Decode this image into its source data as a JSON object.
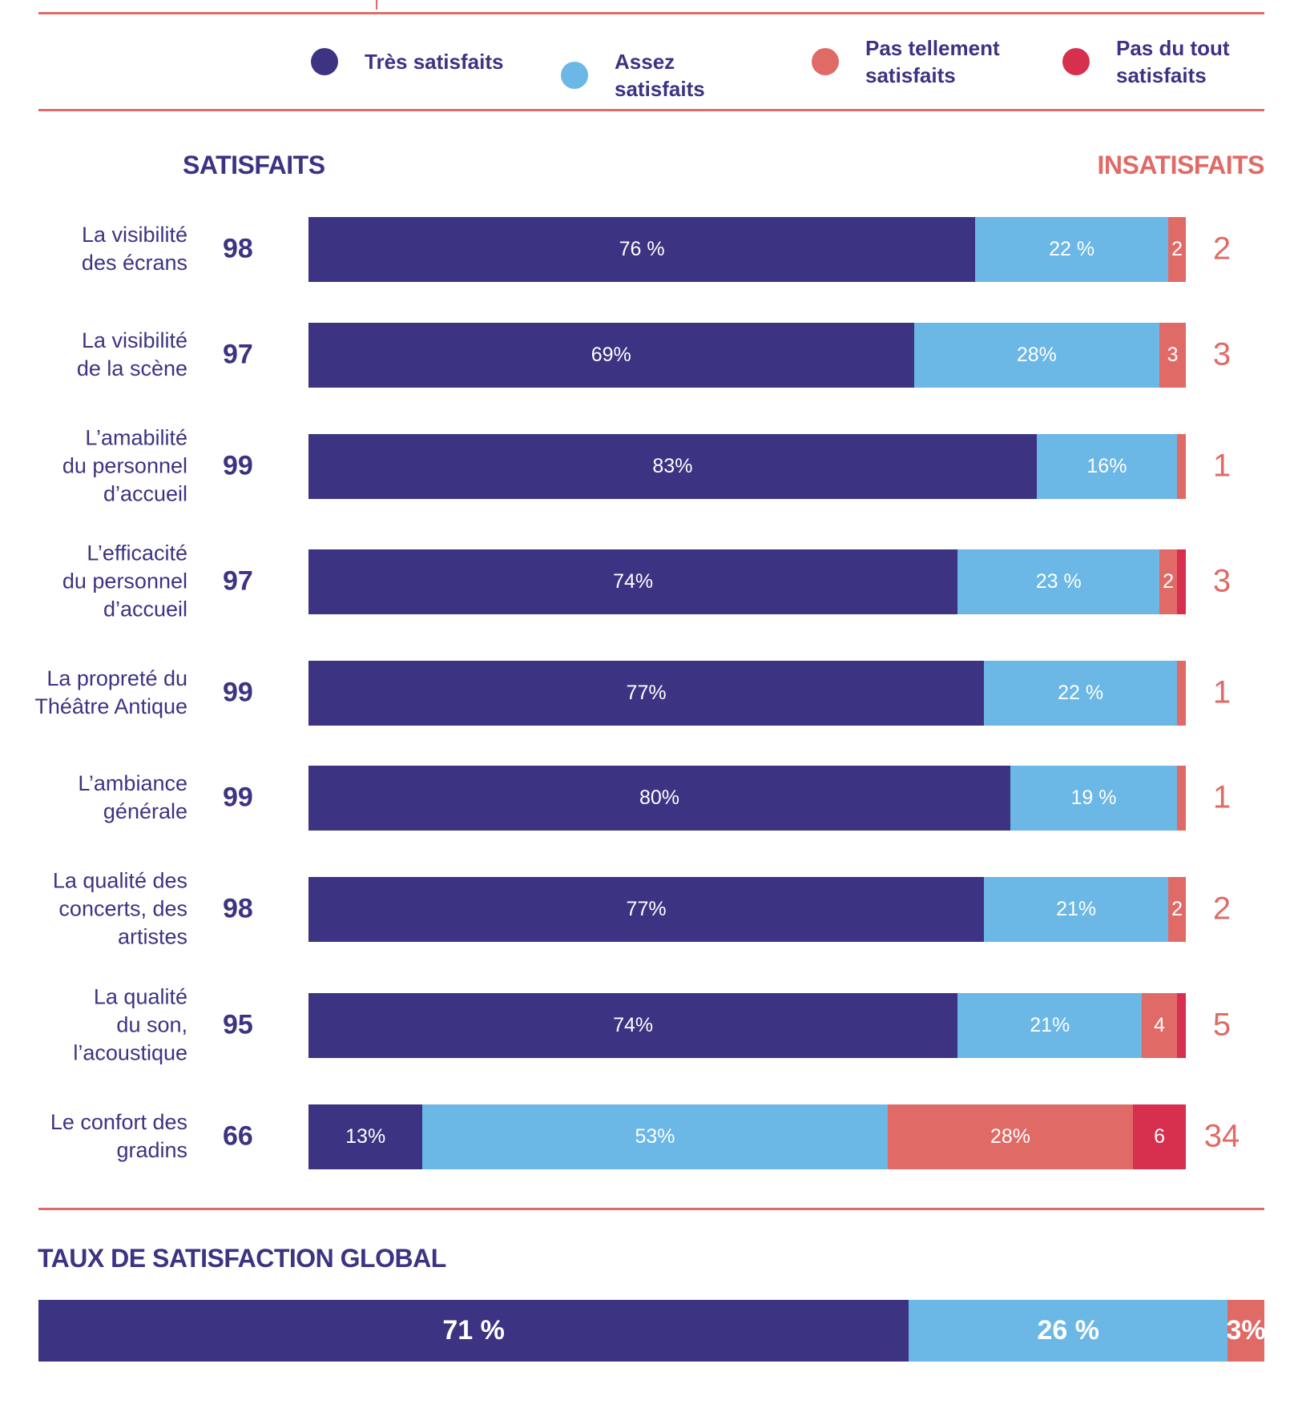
{
  "legend": [
    {
      "label": "Très satisfaits",
      "color": "#3c3382"
    },
    {
      "label": "Assez satisfaits",
      "color": "#6bb7e6"
    },
    {
      "label": "Pas tellement\nsatisfaits",
      "color": "#e06a66"
    },
    {
      "label": "Pas du tout\nsatisfaits",
      "color": "#d6304e"
    }
  ],
  "headings": {
    "satisfied": "SATISFAITS",
    "unsatisfied": "INSATISFAITS"
  },
  "chart_data": {
    "type": "bar",
    "orientation": "horizontal",
    "stacked": true,
    "series_names": [
      "Très satisfaits",
      "Assez satisfaits",
      "Pas tellement satisfaits",
      "Pas du tout satisfaits"
    ],
    "colors": [
      "#3c3382",
      "#6bb7e6",
      "#e06a66",
      "#d6304e"
    ],
    "xlim": [
      0,
      100
    ],
    "rows": [
      {
        "label": "La visibilité\ndes écrans",
        "satisfied": "98",
        "unsatisfied": "2",
        "values": [
          76,
          22,
          2,
          0
        ],
        "labels": [
          "76 %",
          "22 %",
          "2",
          ""
        ]
      },
      {
        "label": "La visibilité\nde la scène",
        "satisfied": "97",
        "unsatisfied": "3",
        "values": [
          69,
          28,
          3,
          0
        ],
        "labels": [
          "69%",
          "28%",
          "3",
          ""
        ]
      },
      {
        "label": "L’amabilité\ndu personnel\nd’accueil",
        "satisfied": "99",
        "unsatisfied": "1",
        "values": [
          83,
          16,
          1,
          0
        ],
        "labels": [
          "83%",
          "16%",
          "",
          ""
        ]
      },
      {
        "label": "L’efficacité\ndu personnel\nd’accueil",
        "satisfied": "97",
        "unsatisfied": "3",
        "values": [
          74,
          23,
          2,
          1
        ],
        "labels": [
          "74%",
          "23 %",
          "2",
          ""
        ]
      },
      {
        "label": "La propreté du\nThéâtre Antique",
        "satisfied": "99",
        "unsatisfied": "1",
        "values": [
          77,
          22,
          1,
          0
        ],
        "labels": [
          "77%",
          "22 %",
          "",
          ""
        ]
      },
      {
        "label": "L’ambiance\ngénérale",
        "satisfied": "99",
        "unsatisfied": "1",
        "values": [
          80,
          19,
          1,
          0
        ],
        "labels": [
          "80%",
          "19 %",
          "",
          ""
        ]
      },
      {
        "label": "La qualité des\nconcerts, des\nartistes",
        "satisfied": "98",
        "unsatisfied": "2",
        "values": [
          77,
          21,
          2,
          0
        ],
        "labels": [
          "77%",
          "21%",
          "2",
          ""
        ]
      },
      {
        "label": "La qualité\ndu son,\nl’acoustique",
        "satisfied": "95",
        "unsatisfied": "5",
        "values": [
          74,
          21,
          4,
          1
        ],
        "labels": [
          "74%",
          "21%",
          "4",
          ""
        ]
      },
      {
        "label": "Le confort des\ngradins",
        "satisfied": "66",
        "unsatisfied": "34",
        "values": [
          13,
          53,
          28,
          6
        ],
        "labels": [
          "13%",
          "53%",
          "28%",
          "6"
        ]
      }
    ],
    "global": {
      "title": "TAUX DE SATISFACTION GLOBAL",
      "values": [
        71,
        26,
        3
      ],
      "labels": [
        "71 %",
        "26 %",
        "3%"
      ],
      "colors": [
        "#3c3382",
        "#6bb7e6",
        "#e06a66"
      ]
    }
  }
}
